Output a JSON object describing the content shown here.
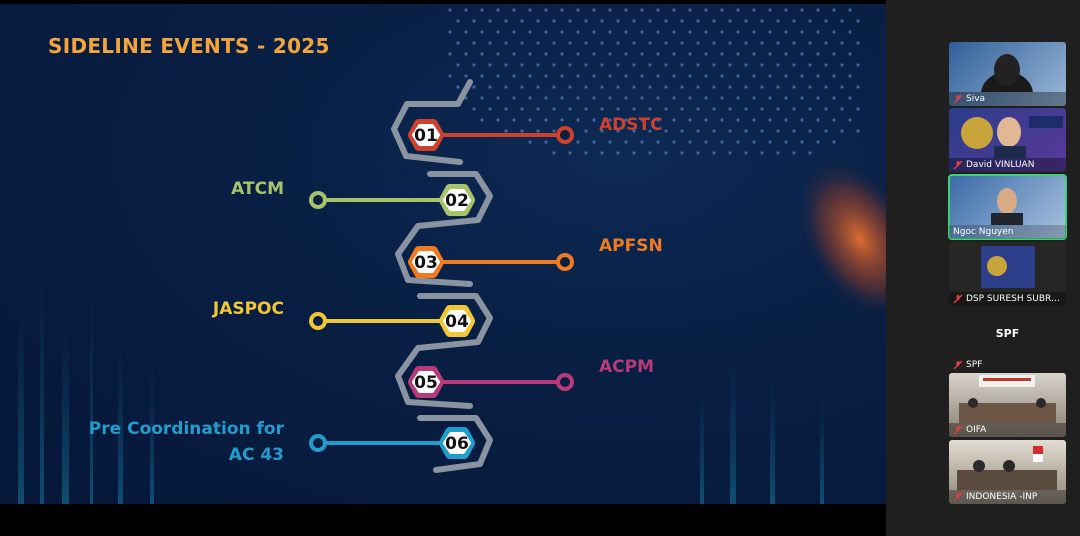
{
  "slide": {
    "title": "SIDELINE EVENTS - 2025",
    "events": [
      {
        "number": "01",
        "label": "ADSTC",
        "side": "right",
        "color": "#d0412d"
      },
      {
        "number": "02",
        "label": "ATCM",
        "side": "left",
        "color": "#a8c46a"
      },
      {
        "number": "03",
        "label": "APFSN",
        "side": "right",
        "color": "#ef7a1f"
      },
      {
        "number": "04",
        "label": "JASPOC",
        "side": "left",
        "color": "#f2c735"
      },
      {
        "number": "05",
        "label": "ACPM",
        "side": "right",
        "color": "#b83a78"
      },
      {
        "number": "06",
        "label_line1": "Pre Coordination for",
        "label_line2": "AC 43",
        "side": "left",
        "color": "#1f9dcc"
      }
    ]
  },
  "participants": [
    {
      "name": "Siva",
      "muted": true,
      "active": false
    },
    {
      "name": "David VINLUAN",
      "muted": true,
      "active": false
    },
    {
      "name": "Ngoc Nguyen",
      "muted": false,
      "active": true
    },
    {
      "name": "DSP SURESH SUBRAM...",
      "muted": true,
      "active": false
    },
    {
      "name": "SPF",
      "display": "SPF",
      "muted": true,
      "active": false
    },
    {
      "name": "OIFA",
      "muted": true,
      "active": false
    },
    {
      "name": "INDONESIA -INP",
      "muted": true,
      "active": false
    }
  ],
  "icons": {
    "muted_mic": "mic-off-icon"
  }
}
